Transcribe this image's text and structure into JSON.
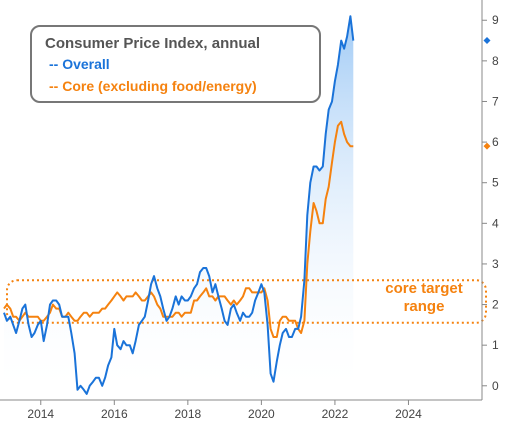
{
  "chart_data": {
    "type": "line",
    "title": "Consumer Price Index, annual",
    "xlabel": "",
    "ylabel": "",
    "xlim": [
      2013.0,
      2026.0
    ],
    "ylim": [
      -0.35,
      9.4
    ],
    "x_ticks": [
      2014,
      2016,
      2018,
      2020,
      2022,
      2024
    ],
    "y_ticks": [
      0,
      1,
      2,
      3,
      4,
      5,
      6,
      7,
      8,
      9
    ],
    "grid": false,
    "legend_position": "top-left",
    "series": [
      {
        "name": "-- Overall",
        "color": "#1a73d9",
        "last_value_marker": 8.5,
        "points": [
          [
            2013.0,
            1.8
          ],
          [
            2013.08,
            1.6
          ],
          [
            2013.17,
            1.7
          ],
          [
            2013.25,
            1.5
          ],
          [
            2013.33,
            1.3
          ],
          [
            2013.42,
            1.6
          ],
          [
            2013.5,
            1.9
          ],
          [
            2013.58,
            2.0
          ],
          [
            2013.67,
            1.5
          ],
          [
            2013.75,
            1.2
          ],
          [
            2013.83,
            1.3
          ],
          [
            2013.92,
            1.5
          ],
          [
            2014.0,
            1.6
          ],
          [
            2014.08,
            1.1
          ],
          [
            2014.17,
            1.5
          ],
          [
            2014.25,
            2.0
          ],
          [
            2014.33,
            2.1
          ],
          [
            2014.42,
            2.1
          ],
          [
            2014.5,
            2.0
          ],
          [
            2014.58,
            1.7
          ],
          [
            2014.67,
            1.7
          ],
          [
            2014.75,
            1.7
          ],
          [
            2014.83,
            1.3
          ],
          [
            2014.92,
            0.8
          ],
          [
            2015.0,
            -0.1
          ],
          [
            2015.08,
            0.0
          ],
          [
            2015.17,
            -0.1
          ],
          [
            2015.25,
            -0.2
          ],
          [
            2015.33,
            0.0
          ],
          [
            2015.42,
            0.1
          ],
          [
            2015.5,
            0.2
          ],
          [
            2015.58,
            0.2
          ],
          [
            2015.67,
            0.0
          ],
          [
            2015.75,
            0.2
          ],
          [
            2015.83,
            0.5
          ],
          [
            2015.92,
            0.7
          ],
          [
            2016.0,
            1.4
          ],
          [
            2016.08,
            1.0
          ],
          [
            2016.17,
            0.9
          ],
          [
            2016.25,
            1.1
          ],
          [
            2016.33,
            1.0
          ],
          [
            2016.42,
            1.0
          ],
          [
            2016.5,
            0.8
          ],
          [
            2016.58,
            1.1
          ],
          [
            2016.67,
            1.5
          ],
          [
            2016.75,
            1.6
          ],
          [
            2016.83,
            1.7
          ],
          [
            2016.92,
            2.1
          ],
          [
            2017.0,
            2.5
          ],
          [
            2017.08,
            2.7
          ],
          [
            2017.17,
            2.4
          ],
          [
            2017.25,
            2.2
          ],
          [
            2017.33,
            1.9
          ],
          [
            2017.42,
            1.6
          ],
          [
            2017.5,
            1.7
          ],
          [
            2017.58,
            1.9
          ],
          [
            2017.67,
            2.2
          ],
          [
            2017.75,
            2.0
          ],
          [
            2017.83,
            2.2
          ],
          [
            2017.92,
            2.1
          ],
          [
            2018.0,
            2.1
          ],
          [
            2018.08,
            2.2
          ],
          [
            2018.17,
            2.4
          ],
          [
            2018.25,
            2.5
          ],
          [
            2018.33,
            2.8
          ],
          [
            2018.42,
            2.9
          ],
          [
            2018.5,
            2.9
          ],
          [
            2018.58,
            2.7
          ],
          [
            2018.67,
            2.3
          ],
          [
            2018.75,
            2.5
          ],
          [
            2018.83,
            2.2
          ],
          [
            2018.92,
            1.9
          ],
          [
            2019.0,
            1.6
          ],
          [
            2019.08,
            1.5
          ],
          [
            2019.17,
            1.9
          ],
          [
            2019.25,
            2.0
          ],
          [
            2019.33,
            1.8
          ],
          [
            2019.42,
            1.6
          ],
          [
            2019.5,
            1.8
          ],
          [
            2019.58,
            1.7
          ],
          [
            2019.67,
            1.7
          ],
          [
            2019.75,
            1.8
          ],
          [
            2019.83,
            2.1
          ],
          [
            2019.92,
            2.3
          ],
          [
            2020.0,
            2.5
          ],
          [
            2020.08,
            2.3
          ],
          [
            2020.17,
            1.5
          ],
          [
            2020.25,
            0.3
          ],
          [
            2020.33,
            0.1
          ],
          [
            2020.42,
            0.6
          ],
          [
            2020.5,
            1.0
          ],
          [
            2020.58,
            1.3
          ],
          [
            2020.67,
            1.4
          ],
          [
            2020.75,
            1.2
          ],
          [
            2020.83,
            1.2
          ],
          [
            2020.92,
            1.4
          ],
          [
            2021.0,
            1.4
          ],
          [
            2021.08,
            1.7
          ],
          [
            2021.17,
            2.6
          ],
          [
            2021.25,
            4.2
          ],
          [
            2021.33,
            5.0
          ],
          [
            2021.42,
            5.4
          ],
          [
            2021.5,
            5.4
          ],
          [
            2021.58,
            5.3
          ],
          [
            2021.67,
            5.4
          ],
          [
            2021.75,
            6.2
          ],
          [
            2021.83,
            6.8
          ],
          [
            2021.92,
            7.0
          ],
          [
            2022.0,
            7.5
          ],
          [
            2022.08,
            7.9
          ],
          [
            2022.17,
            8.5
          ],
          [
            2022.25,
            8.3
          ],
          [
            2022.33,
            8.6
          ],
          [
            2022.42,
            9.1
          ],
          [
            2022.5,
            8.5
          ]
        ]
      },
      {
        "name": "-- Core (excluding food/energy)",
        "color": "#f5820f",
        "last_value_marker": 5.9,
        "points": [
          [
            2013.0,
            1.9
          ],
          [
            2013.08,
            2.0
          ],
          [
            2013.17,
            1.9
          ],
          [
            2013.25,
            1.7
          ],
          [
            2013.33,
            1.7
          ],
          [
            2013.42,
            1.6
          ],
          [
            2013.5,
            1.7
          ],
          [
            2013.58,
            1.8
          ],
          [
            2013.67,
            1.7
          ],
          [
            2013.75,
            1.7
          ],
          [
            2013.83,
            1.7
          ],
          [
            2013.92,
            1.7
          ],
          [
            2014.0,
            1.6
          ],
          [
            2014.08,
            1.6
          ],
          [
            2014.17,
            1.7
          ],
          [
            2014.25,
            1.8
          ],
          [
            2014.33,
            2.0
          ],
          [
            2014.42,
            1.9
          ],
          [
            2014.5,
            1.9
          ],
          [
            2014.58,
            1.7
          ],
          [
            2014.67,
            1.7
          ],
          [
            2014.75,
            1.8
          ],
          [
            2014.83,
            1.7
          ],
          [
            2014.92,
            1.6
          ],
          [
            2015.0,
            1.6
          ],
          [
            2015.08,
            1.7
          ],
          [
            2015.17,
            1.8
          ],
          [
            2015.25,
            1.8
          ],
          [
            2015.33,
            1.7
          ],
          [
            2015.42,
            1.8
          ],
          [
            2015.5,
            1.8
          ],
          [
            2015.58,
            1.8
          ],
          [
            2015.67,
            1.9
          ],
          [
            2015.75,
            1.9
          ],
          [
            2015.83,
            2.0
          ],
          [
            2015.92,
            2.1
          ],
          [
            2016.0,
            2.2
          ],
          [
            2016.08,
            2.3
          ],
          [
            2016.17,
            2.2
          ],
          [
            2016.25,
            2.1
          ],
          [
            2016.33,
            2.2
          ],
          [
            2016.42,
            2.2
          ],
          [
            2016.5,
            2.2
          ],
          [
            2016.58,
            2.3
          ],
          [
            2016.67,
            2.2
          ],
          [
            2016.75,
            2.1
          ],
          [
            2016.83,
            2.1
          ],
          [
            2016.92,
            2.2
          ],
          [
            2017.0,
            2.3
          ],
          [
            2017.08,
            2.2
          ],
          [
            2017.17,
            2.0
          ],
          [
            2017.25,
            1.9
          ],
          [
            2017.33,
            1.7
          ],
          [
            2017.42,
            1.7
          ],
          [
            2017.5,
            1.7
          ],
          [
            2017.58,
            1.7
          ],
          [
            2017.67,
            1.8
          ],
          [
            2017.75,
            1.8
          ],
          [
            2017.83,
            1.7
          ],
          [
            2017.92,
            1.8
          ],
          [
            2018.0,
            1.8
          ],
          [
            2018.08,
            1.8
          ],
          [
            2018.17,
            2.1
          ],
          [
            2018.25,
            2.1
          ],
          [
            2018.33,
            2.2
          ],
          [
            2018.42,
            2.3
          ],
          [
            2018.5,
            2.4
          ],
          [
            2018.58,
            2.2
          ],
          [
            2018.67,
            2.2
          ],
          [
            2018.75,
            2.1
          ],
          [
            2018.83,
            2.2
          ],
          [
            2018.92,
            2.2
          ],
          [
            2019.0,
            2.2
          ],
          [
            2019.08,
            2.1
          ],
          [
            2019.17,
            2.0
          ],
          [
            2019.25,
            2.1
          ],
          [
            2019.33,
            2.0
          ],
          [
            2019.42,
            2.1
          ],
          [
            2019.5,
            2.2
          ],
          [
            2019.58,
            2.4
          ],
          [
            2019.67,
            2.4
          ],
          [
            2019.75,
            2.3
          ],
          [
            2019.83,
            2.3
          ],
          [
            2019.92,
            2.3
          ],
          [
            2020.0,
            2.3
          ],
          [
            2020.08,
            2.4
          ],
          [
            2020.17,
            2.1
          ],
          [
            2020.25,
            1.4
          ],
          [
            2020.33,
            1.2
          ],
          [
            2020.42,
            1.2
          ],
          [
            2020.5,
            1.6
          ],
          [
            2020.58,
            1.7
          ],
          [
            2020.67,
            1.7
          ],
          [
            2020.75,
            1.6
          ],
          [
            2020.83,
            1.6
          ],
          [
            2020.92,
            1.6
          ],
          [
            2021.0,
            1.4
          ],
          [
            2021.08,
            1.3
          ],
          [
            2021.17,
            1.6
          ],
          [
            2021.25,
            3.0
          ],
          [
            2021.33,
            3.8
          ],
          [
            2021.42,
            4.5
          ],
          [
            2021.5,
            4.3
          ],
          [
            2021.58,
            4.0
          ],
          [
            2021.67,
            4.0
          ],
          [
            2021.75,
            4.6
          ],
          [
            2021.83,
            4.9
          ],
          [
            2021.92,
            5.5
          ],
          [
            2022.0,
            6.0
          ],
          [
            2022.08,
            6.4
          ],
          [
            2022.17,
            6.5
          ],
          [
            2022.25,
            6.2
          ],
          [
            2022.33,
            6.0
          ],
          [
            2022.42,
            5.9
          ],
          [
            2022.5,
            5.9
          ]
        ]
      }
    ],
    "bands": [
      {
        "label": "core target range",
        "y_from": 1.55,
        "y_to": 2.6,
        "style": "dotted",
        "color": "#f5820f"
      }
    ]
  },
  "legend": {
    "title": "Consumer Price Index, annual",
    "overall_label": "-- Overall",
    "core_label": "-- Core (excluding food/energy)"
  },
  "annotation": {
    "line1": "core target",
    "line2": "range"
  },
  "colors": {
    "overall": "#1a73d9",
    "core": "#f5820f",
    "fill_top": "#9cc8f5",
    "fill_bottom": "#ffffff",
    "axis": "#888888",
    "legend_border": "#777777",
    "legend_title": "#555555"
  }
}
